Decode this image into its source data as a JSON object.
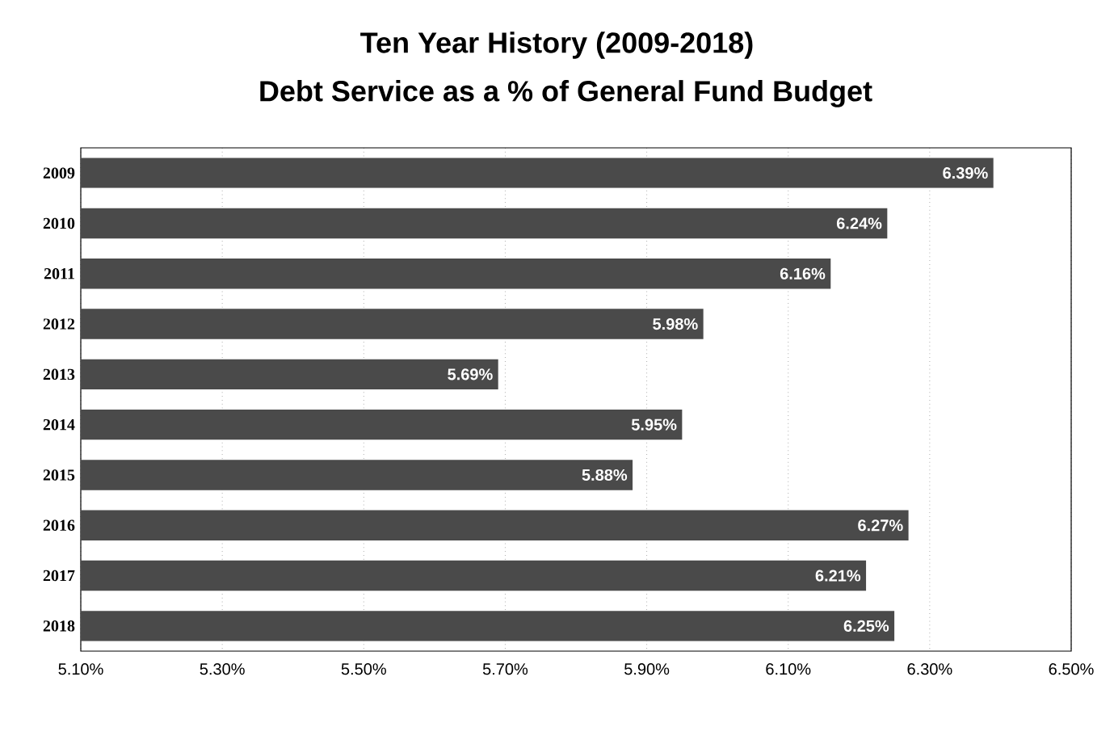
{
  "chart_data": {
    "type": "bar",
    "orientation": "horizontal",
    "title": "Ten Year History (2009-2018)",
    "subtitle": "Debt Service as a % of General Fund Budget",
    "categories": [
      "2009",
      "2010",
      "2011",
      "2012",
      "2013",
      "2014",
      "2015",
      "2016",
      "2017",
      "2018"
    ],
    "values": [
      6.39,
      6.24,
      6.16,
      5.98,
      5.69,
      5.95,
      5.88,
      6.27,
      6.21,
      6.25
    ],
    "value_labels": [
      "6.39%",
      "6.24%",
      "6.16%",
      "5.98%",
      "5.69%",
      "5.95%",
      "5.88%",
      "6.27%",
      "6.21%",
      "6.25%"
    ],
    "color": "#4a4a4a",
    "xlim": [
      5.1,
      6.5
    ],
    "xticks": [
      {
        "value": 5.1,
        "label": "5.10%"
      },
      {
        "value": 5.3,
        "label": "5.30%"
      },
      {
        "value": 5.5,
        "label": "5.50%"
      },
      {
        "value": 5.7,
        "label": "5.70%"
      },
      {
        "value": 5.9,
        "label": "5.90%"
      },
      {
        "value": 6.1,
        "label": "6.10%"
      },
      {
        "value": 6.3,
        "label": "6.30%"
      },
      {
        "value": 6.5,
        "label": "6.50%"
      }
    ],
    "grid": "x"
  }
}
